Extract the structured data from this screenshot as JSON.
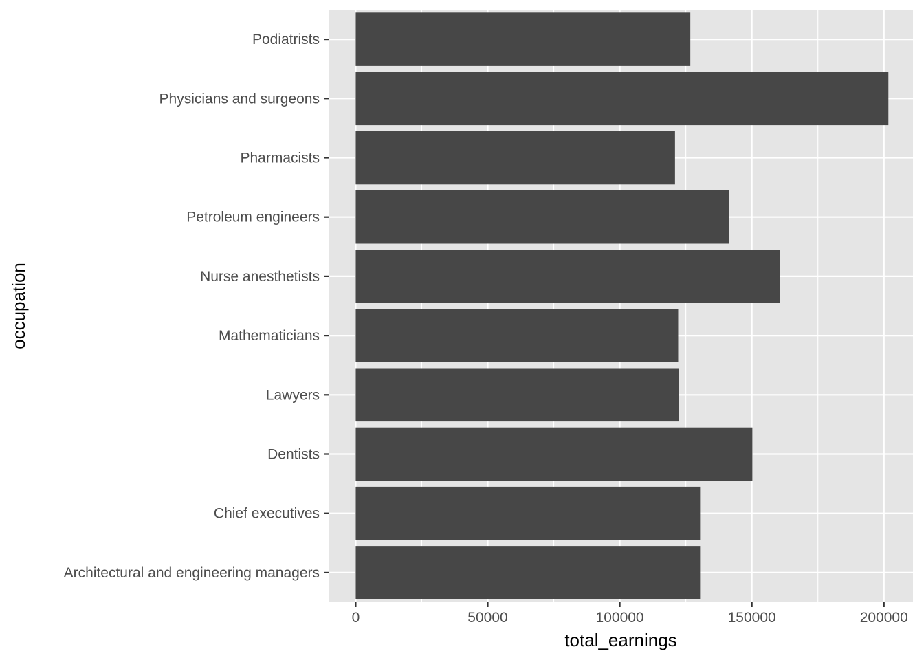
{
  "chart_data": {
    "type": "bar",
    "orientation": "horizontal",
    "xlabel": "total_earnings",
    "ylabel": "occupation",
    "xlim": [
      -10000,
      211000
    ],
    "x_ticks": [
      0,
      50000,
      100000,
      150000,
      200000
    ],
    "x_tick_labels": [
      "0",
      "50000",
      "100000",
      "150000",
      "200000"
    ],
    "grid": true,
    "legend": "none",
    "categories": [
      "Podiatrists",
      "Physicians and surgeons",
      "Pharmacists",
      "Petroleum engineers",
      "Nurse anesthetists",
      "Mathematicians",
      "Lawyers",
      "Dentists",
      "Chief executives",
      "Architectural and engineering managers"
    ],
    "values": [
      126700,
      201700,
      120900,
      141400,
      160700,
      122100,
      122300,
      150200,
      130400,
      130400
    ],
    "colors": {
      "panel": "#e5e5e5",
      "grid_major": "#ffffff",
      "bar": "#474747",
      "tick": "#333333"
    }
  }
}
